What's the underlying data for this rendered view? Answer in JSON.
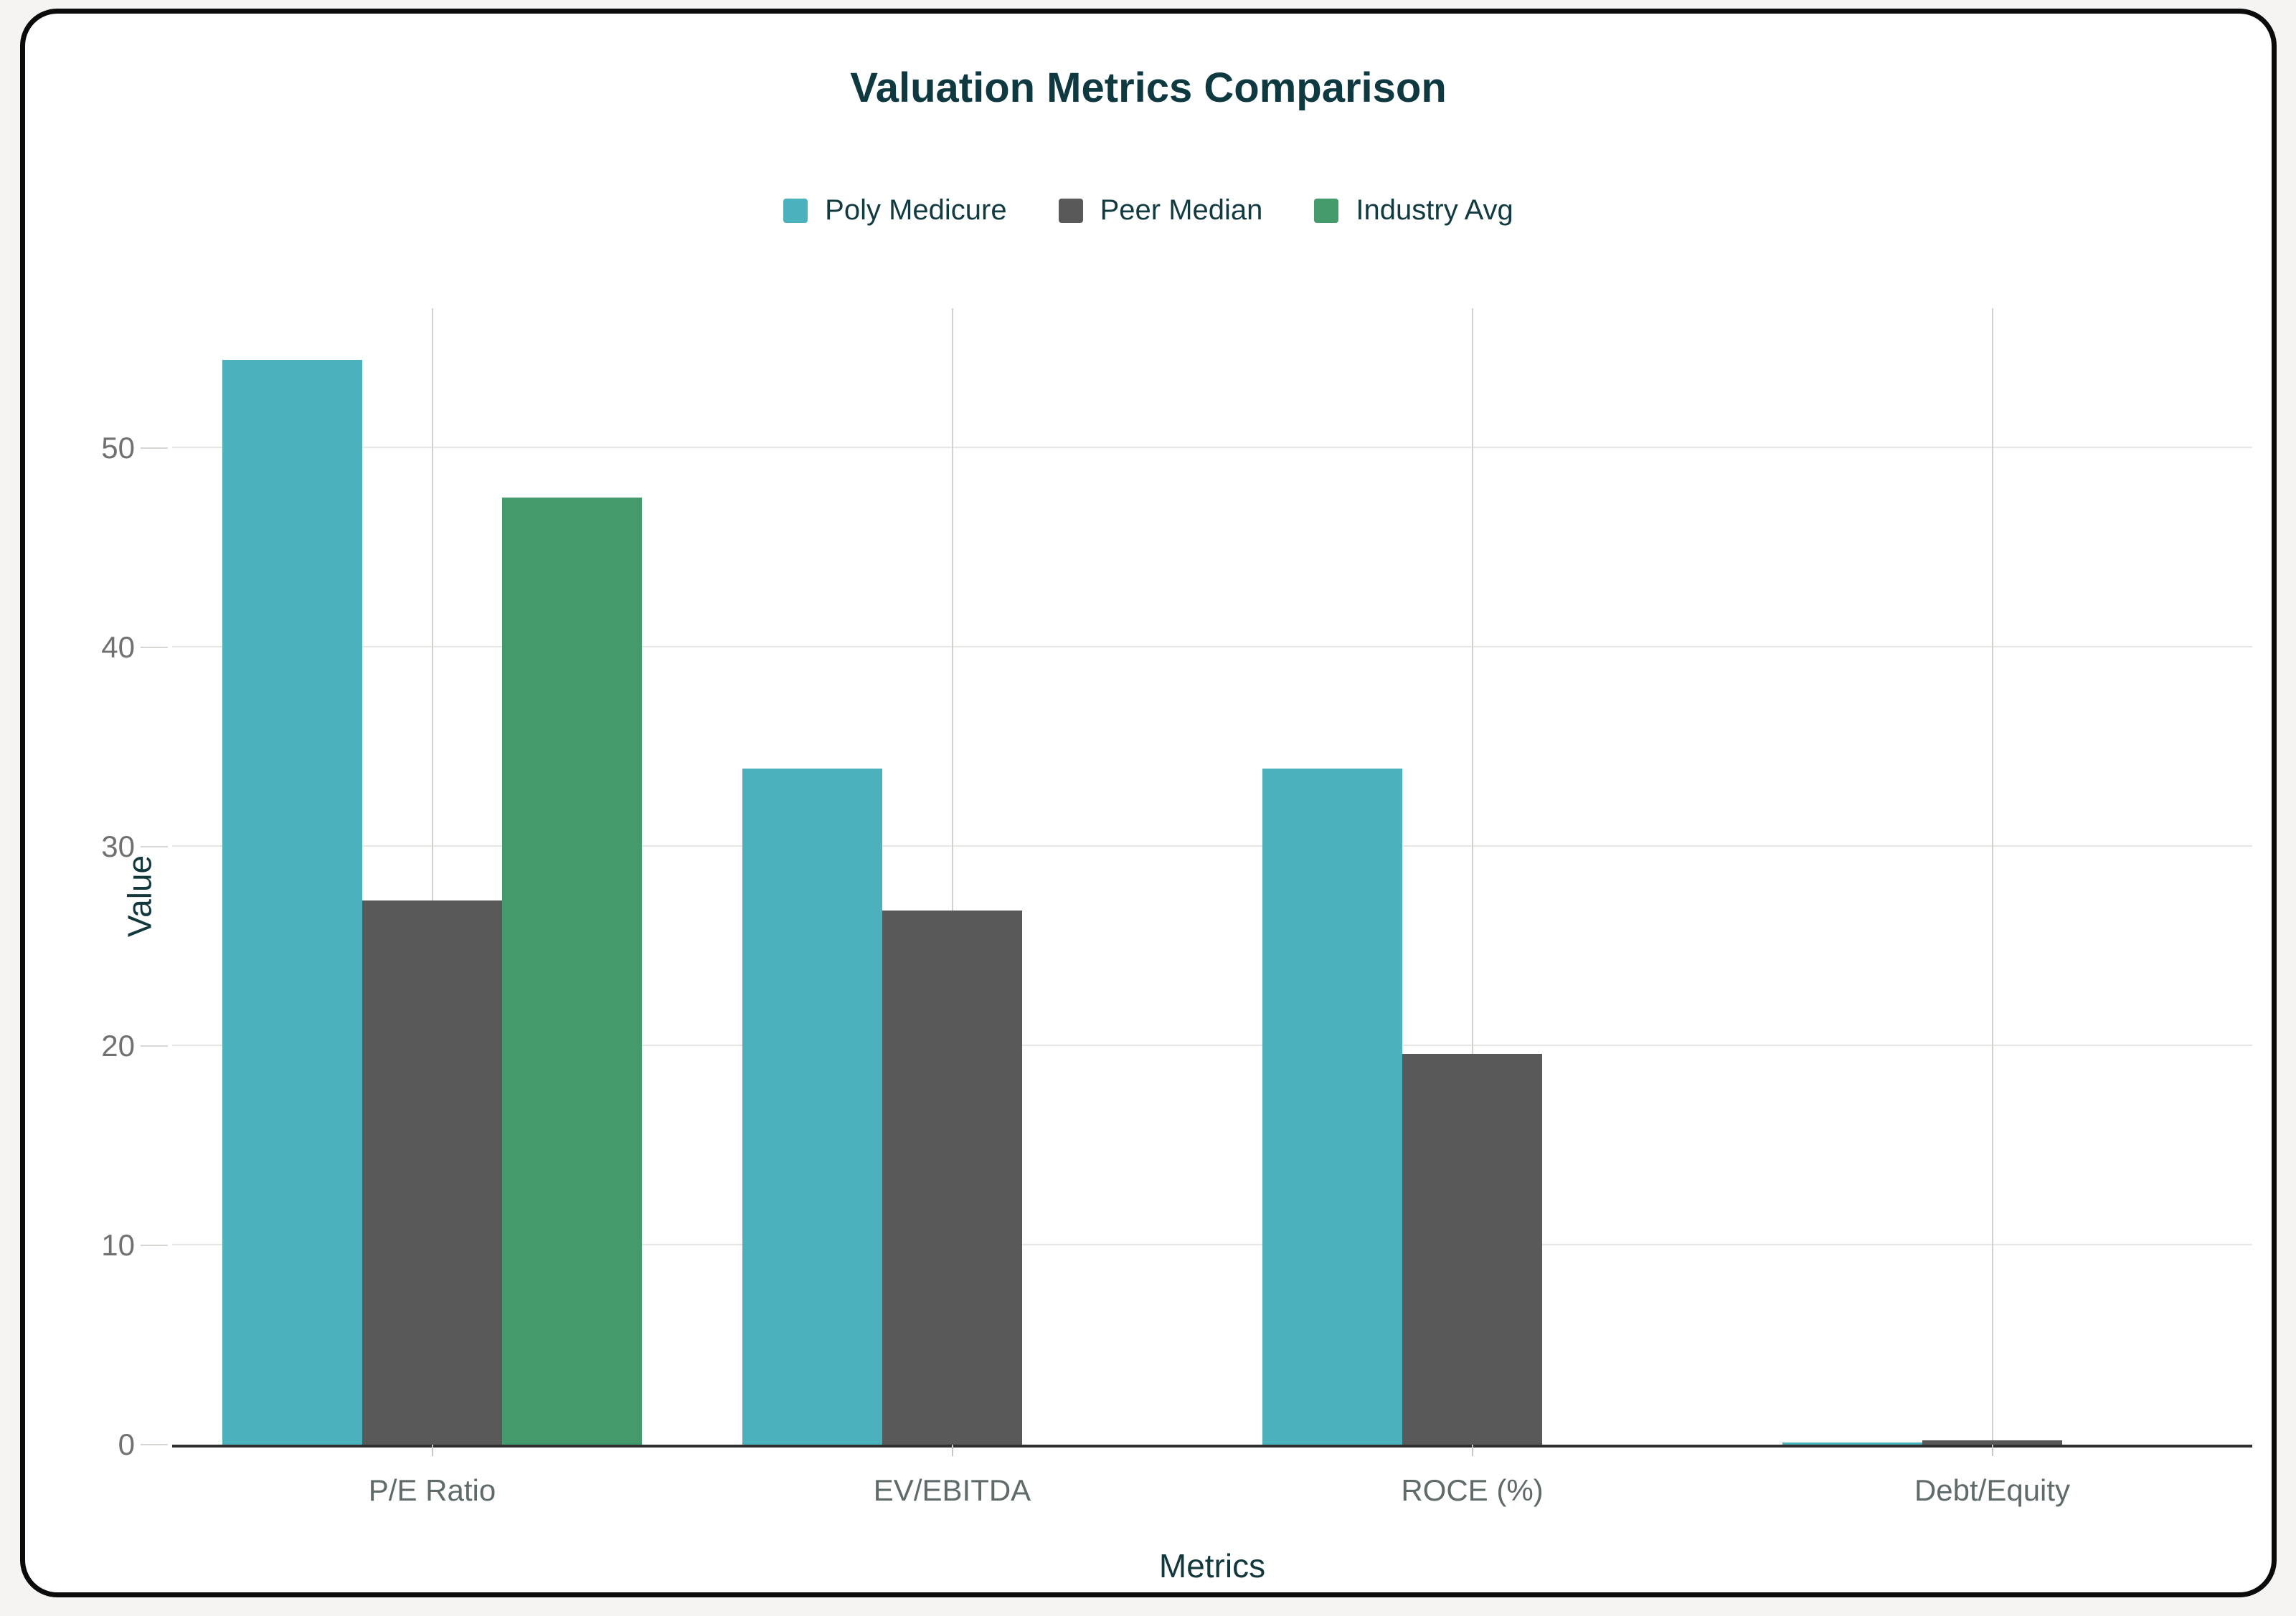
{
  "chart_data": {
    "type": "bar",
    "title": "Valuation Metrics Comparison",
    "xlabel": "Metrics",
    "ylabel": "Value",
    "categories": [
      "P/E Ratio",
      "EV/EBITDA",
      "ROCE (%)",
      "Debt/Equity"
    ],
    "series": [
      {
        "name": "Poly Medicure",
        "color": "#4AB1BD",
        "values": [
          54.4,
          33.9,
          33.9,
          0.1
        ]
      },
      {
        "name": "Peer Median",
        "color": "#595959",
        "values": [
          27.3,
          26.8,
          19.6,
          0.2
        ]
      },
      {
        "name": "Industry Avg",
        "color": "#449A6B",
        "values": [
          47.5,
          0,
          0,
          0
        ]
      }
    ],
    "yticks": [
      0,
      10,
      20,
      30,
      40,
      50
    ],
    "ylim": [
      0,
      57
    ],
    "grid": true,
    "legend_position": "top-center"
  },
  "colors": {
    "title_text": "#0e3940",
    "legend_text": "#113b41",
    "tick_text": "#707070",
    "category_text": "#5f6a6a",
    "axis_line": "#2f2f2f",
    "h_gridline": "#e8e6e3",
    "v_gridline": "#d3d1ce",
    "card_border": "#0b0b0b",
    "card_background": "#ffffff"
  }
}
